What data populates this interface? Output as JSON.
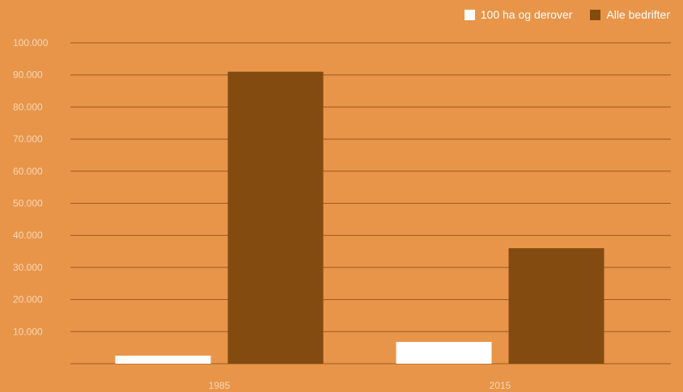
{
  "colors": {
    "background": "#E8954A",
    "gridline": "#9A5A1E",
    "tick_text": "#F6D7B6",
    "series_small": "#FFFFFF",
    "series_all": "#844B10"
  },
  "chart_data": {
    "type": "bar",
    "title": "",
    "xlabel": "",
    "ylabel": "",
    "categories": [
      "1985",
      "2015"
    ],
    "series": [
      {
        "name": "100 ha og derover",
        "color": "#FFFFFF",
        "values": [
          2500,
          6800
        ]
      },
      {
        "name": "Alle bedrifter",
        "color": "#844B10",
        "values": [
          91000,
          36000
        ]
      }
    ],
    "ylim": [
      0,
      100000
    ],
    "yticks": [
      10000,
      20000,
      30000,
      40000,
      50000,
      60000,
      70000,
      80000,
      90000,
      100000
    ],
    "ytick_labels": [
      "10.000",
      "20.000",
      "30.000",
      "40.000",
      "50.000",
      "60.000",
      "70.000",
      "80.000",
      "90.000",
      "100.000"
    ],
    "grid": true,
    "legend_position": "top-right"
  }
}
